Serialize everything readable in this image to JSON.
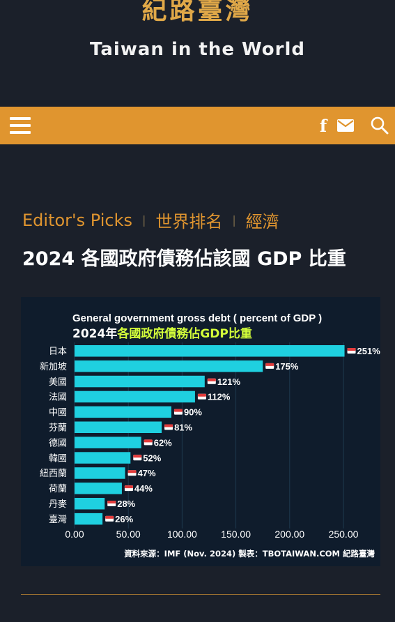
{
  "site": {
    "logo": "紀路臺灣",
    "tagline": "Taiwan in the World"
  },
  "nav": {
    "menu_icon": "hamburger-icon",
    "facebook_icon": "facebook-icon",
    "facebook_glyph": "f",
    "mail_icon": "envelope-icon",
    "search_icon": "search-icon",
    "accent_color": "#e0952f"
  },
  "breadcrumbs": [
    "Editor's Picks",
    "世界排名",
    "經濟"
  ],
  "article": {
    "title": "2024 各國政府債務佔該國 GDP 比重"
  },
  "chart_data": {
    "type": "bar",
    "orientation": "horizontal",
    "title": "General government gross debt ( percent of GDP )",
    "subtitle_prefix": "2024年",
    "subtitle_highlight": "各國政府債務佔GDP比重",
    "categories": [
      "日本",
      "新加坡",
      "美國",
      "法國",
      "中國",
      "芬蘭",
      "德國",
      "韓國",
      "紐西蘭",
      "荷蘭",
      "丹麥",
      "臺灣"
    ],
    "values": [
      251,
      175,
      121,
      112,
      90,
      81,
      62,
      52,
      47,
      44,
      28,
      26
    ],
    "value_labels": [
      "251%",
      "175%",
      "121%",
      "112%",
      "90%",
      "81%",
      "62%",
      "52%",
      "47%",
      "44%",
      "28%",
      "26%"
    ],
    "xlim": [
      0,
      250
    ],
    "xticks": [
      "0.00",
      "50.00",
      "100.00",
      "150.00",
      "200.00",
      "250.00"
    ],
    "bar_color": "#1fd0e0",
    "source": "資料來源：IMF (Nov. 2024)  製表：TBOTAIWAN.COM 紀路臺灣"
  }
}
